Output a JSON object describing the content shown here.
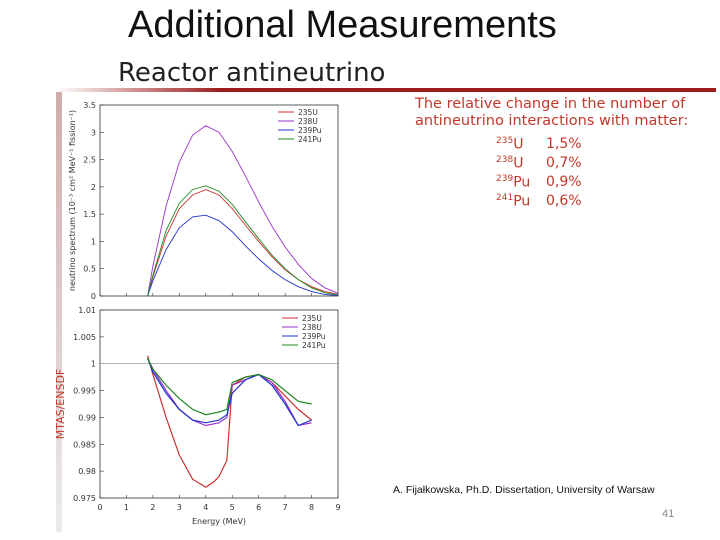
{
  "slide": {
    "title": "Additional Measurements",
    "subtitle": "Reactor antineutrino",
    "note": "The relative change in the number of antineutrino interactions with matter:",
    "isotopes": [
      {
        "mass": "235",
        "element": "U",
        "value": "1,5%"
      },
      {
        "mass": "238",
        "element": "U",
        "value": "0,7%"
      },
      {
        "mass": "239",
        "element": "Pu",
        "value": "0,9%"
      },
      {
        "mass": "241",
        "element": "Pu",
        "value": "0,6%"
      }
    ],
    "citation": "A. Fijałkowska, Ph.D. Dissertation, University of Warsaw",
    "page_number": "41"
  },
  "colors": {
    "accent": "#9b1b1b",
    "note_text": "#c0392b",
    "u235": "#cc3333",
    "u238": "#9933cc",
    "pu239": "#2233cc",
    "pu241": "#228822"
  },
  "chart_data": [
    {
      "type": "line",
      "title": "",
      "xlabel": "",
      "ylabel": "neutrino spectrum (10⁻³ cm² MeV⁻¹ fission⁻¹)",
      "xlim": [
        0,
        9
      ],
      "ylim": [
        0,
        3.5
      ],
      "yticks": [
        "0",
        "0.5",
        "1",
        "1.5",
        "2",
        "2.5",
        "3",
        "3.5"
      ],
      "legend_position": "top-right",
      "series": [
        {
          "name": "235U",
          "color": "#cc3333",
          "x": [
            1.8,
            2.0,
            2.5,
            3.0,
            3.5,
            4.0,
            4.5,
            5.0,
            5.5,
            6.0,
            6.5,
            7.0,
            7.5,
            8.0,
            8.5,
            9.0
          ],
          "y": [
            0.0,
            0.35,
            1.1,
            1.6,
            1.85,
            1.95,
            1.85,
            1.6,
            1.3,
            1.0,
            0.72,
            0.48,
            0.3,
            0.17,
            0.08,
            0.03
          ]
        },
        {
          "name": "238U",
          "color": "#9933cc",
          "x": [
            1.8,
            2.0,
            2.5,
            3.0,
            3.5,
            4.0,
            4.5,
            5.0,
            5.5,
            6.0,
            6.5,
            7.0,
            7.5,
            8.0,
            8.5,
            9.0
          ],
          "y": [
            0.0,
            0.55,
            1.65,
            2.45,
            2.95,
            3.12,
            3.0,
            2.65,
            2.2,
            1.72,
            1.28,
            0.9,
            0.58,
            0.32,
            0.15,
            0.05
          ]
        },
        {
          "name": "239Pu",
          "color": "#2233cc",
          "x": [
            1.8,
            2.0,
            2.5,
            3.0,
            3.5,
            4.0,
            4.5,
            5.0,
            5.5,
            6.0,
            6.5,
            7.0,
            7.5,
            8.0,
            8.5,
            9.0
          ],
          "y": [
            0.0,
            0.28,
            0.85,
            1.25,
            1.45,
            1.48,
            1.38,
            1.18,
            0.92,
            0.68,
            0.47,
            0.3,
            0.17,
            0.08,
            0.03,
            0.01
          ]
        },
        {
          "name": "241Pu",
          "color": "#228822",
          "x": [
            1.8,
            2.0,
            2.5,
            3.0,
            3.5,
            4.0,
            4.5,
            5.0,
            5.5,
            6.0,
            6.5,
            7.0,
            7.5,
            8.0,
            8.5,
            9.0
          ],
          "y": [
            0.0,
            0.38,
            1.2,
            1.7,
            1.95,
            2.02,
            1.92,
            1.68,
            1.36,
            1.05,
            0.75,
            0.5,
            0.3,
            0.15,
            0.06,
            0.02
          ]
        }
      ]
    },
    {
      "type": "line",
      "title": "",
      "xlabel": "Energy (MeV)",
      "ylabel": "MTAS/ENSDF",
      "xlim": [
        0,
        9
      ],
      "ylim": [
        0.975,
        1.01
      ],
      "xticks": [
        "0",
        "1",
        "2",
        "3",
        "4",
        "5",
        "6",
        "7",
        "8",
        "9"
      ],
      "yticks": [
        "0.975",
        "0.98",
        "0.985",
        "0.99",
        "0.995",
        "1",
        "1.005",
        "1.01"
      ],
      "legend_position": "top-right",
      "series": [
        {
          "name": "235U",
          "color": "#cc3333",
          "x": [
            1.8,
            2.0,
            2.5,
            3.0,
            3.5,
            4.0,
            4.3,
            4.5,
            4.8,
            5.0,
            5.5,
            6.0,
            6.5,
            7.0,
            7.5,
            8.0
          ],
          "y": [
            1.0015,
            0.998,
            0.99,
            0.983,
            0.9785,
            0.977,
            0.978,
            0.979,
            0.982,
            0.996,
            0.9975,
            0.998,
            0.9965,
            0.994,
            0.9915,
            0.9895
          ]
        },
        {
          "name": "238U",
          "color": "#9933cc",
          "x": [
            1.8,
            2.0,
            2.5,
            3.0,
            3.5,
            4.0,
            4.5,
            4.8,
            5.0,
            5.5,
            6.0,
            6.5,
            7.0,
            7.5,
            8.0
          ],
          "y": [
            1.001,
            0.999,
            0.995,
            0.9915,
            0.9895,
            0.9885,
            0.989,
            0.99,
            0.996,
            0.997,
            0.998,
            0.9965,
            0.993,
            0.9885,
            0.989
          ]
        },
        {
          "name": "239Pu",
          "color": "#2233cc",
          "x": [
            1.8,
            2.0,
            2.5,
            3.0,
            3.5,
            4.0,
            4.5,
            4.8,
            5.0,
            5.5,
            6.0,
            6.5,
            7.0,
            7.5,
            8.0
          ],
          "y": [
            1.001,
            0.9985,
            0.9945,
            0.9915,
            0.9895,
            0.989,
            0.9895,
            0.9905,
            0.9945,
            0.997,
            0.998,
            0.996,
            0.9925,
            0.9885,
            0.9895
          ]
        },
        {
          "name": "241Pu",
          "color": "#228822",
          "x": [
            1.8,
            2.0,
            2.5,
            3.0,
            3.5,
            4.0,
            4.5,
            4.8,
            5.0,
            5.5,
            6.0,
            6.5,
            7.0,
            7.5,
            8.0
          ],
          "y": [
            1.001,
            0.999,
            0.996,
            0.9935,
            0.9915,
            0.9905,
            0.991,
            0.9915,
            0.9965,
            0.9975,
            0.998,
            0.997,
            0.995,
            0.993,
            0.9925
          ]
        }
      ]
    }
  ]
}
